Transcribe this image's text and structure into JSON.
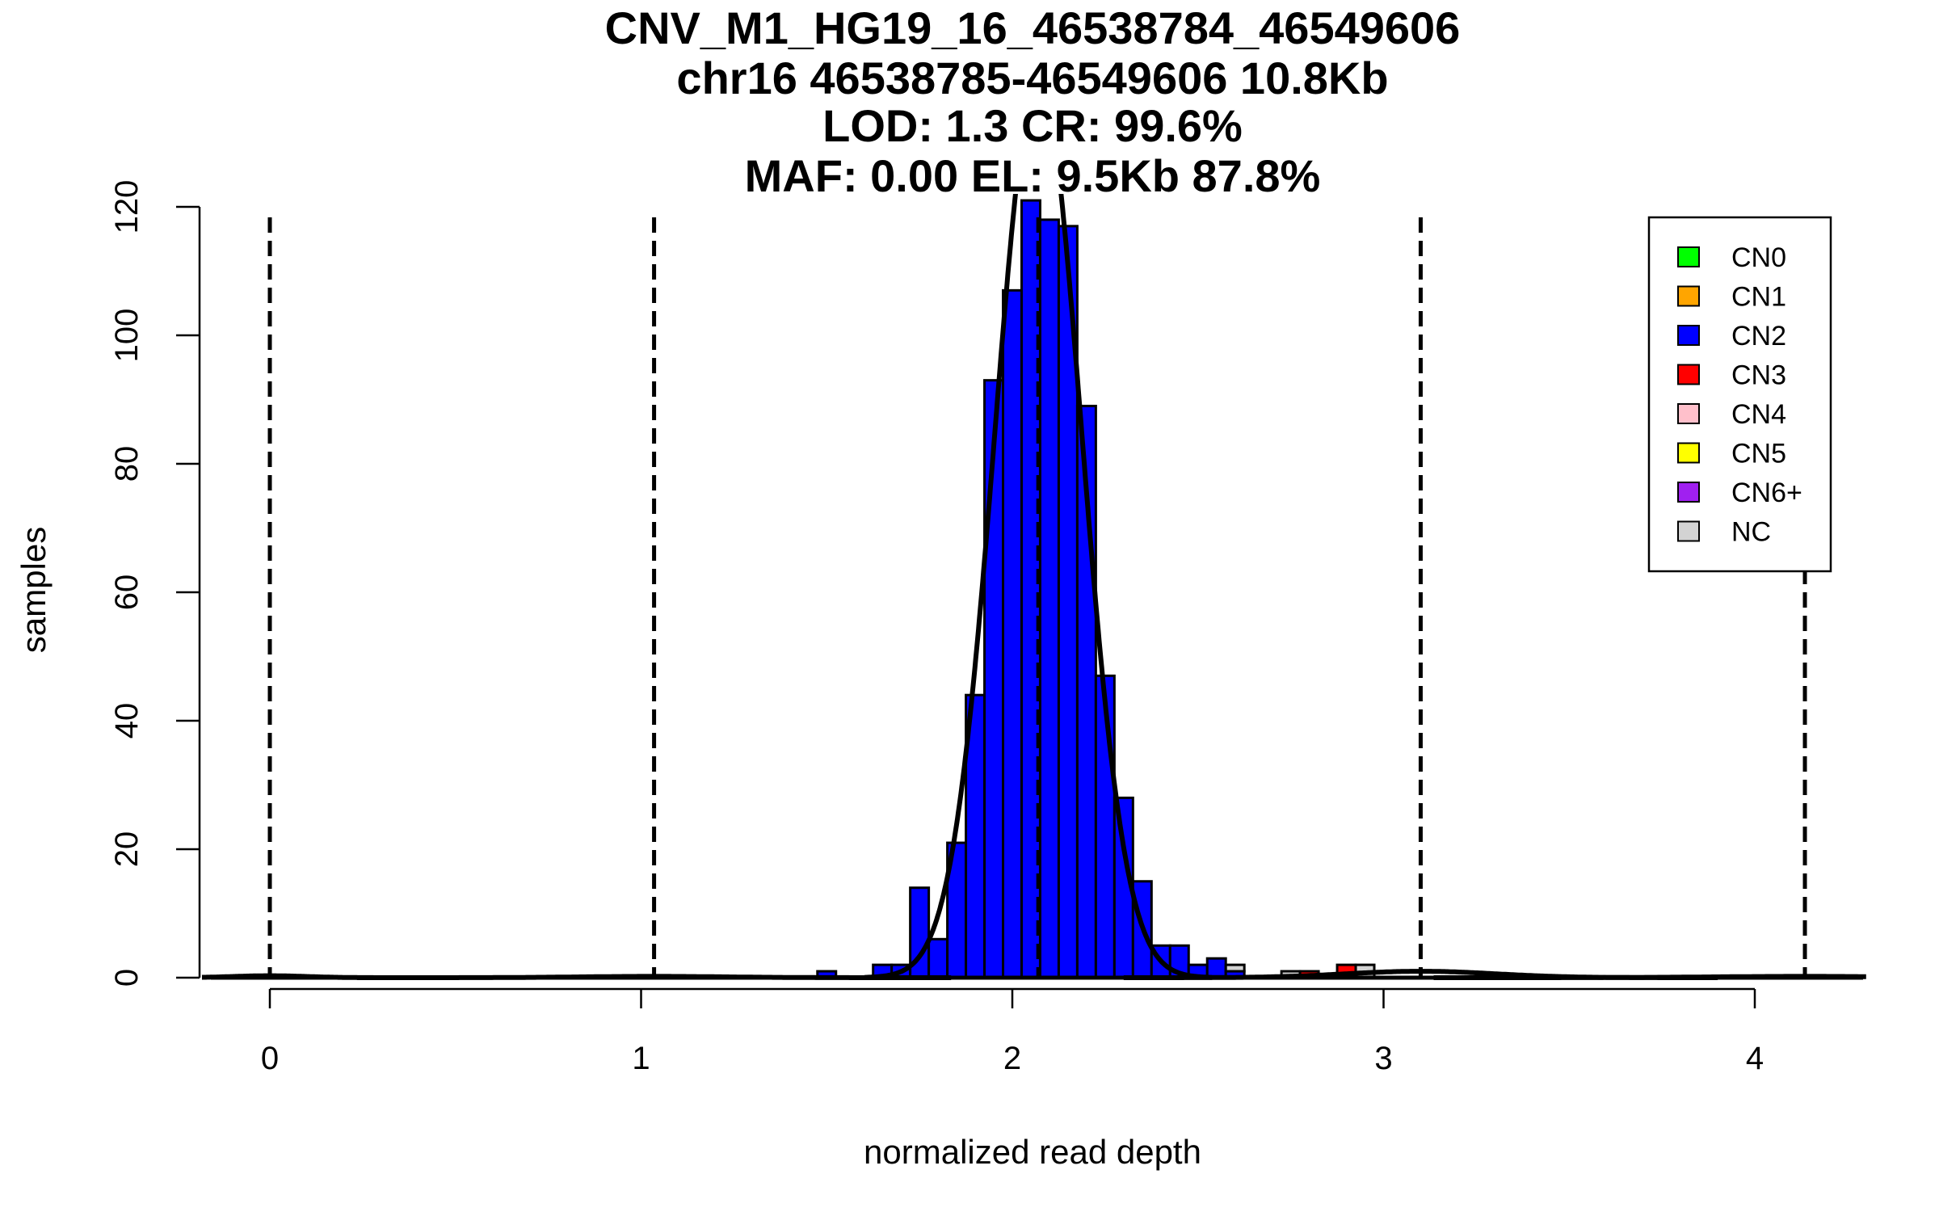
{
  "chart_data": {
    "type": "bar",
    "title_lines": [
      "CNV_M1_HG19_16_46538784_46549606",
      "chr16 46538785-46549606 10.8Kb",
      "LOD: 1.3 CR: 99.6%",
      "MAF: 0.00 EL: 9.5Kb 87.8%"
    ],
    "xlabel": "normalized read depth",
    "ylabel": "samples",
    "xlim": [
      -0.2,
      4.3
    ],
    "ylim": [
      0,
      120
    ],
    "xticks": [
      "0",
      "1",
      "2",
      "3",
      "4"
    ],
    "yticks": [
      "0",
      "20",
      "40",
      "60",
      "80",
      "100",
      "120"
    ],
    "bin_width": 0.05,
    "bins": [
      {
        "x0": 1.475,
        "counts": {
          "CN2": 1
        }
      },
      {
        "x0": 1.625,
        "counts": {
          "CN2": 2
        }
      },
      {
        "x0": 1.675,
        "counts": {
          "CN2": 2
        }
      },
      {
        "x0": 1.725,
        "counts": {
          "CN2": 14
        }
      },
      {
        "x0": 1.775,
        "counts": {
          "CN2": 6
        }
      },
      {
        "x0": 1.825,
        "counts": {
          "CN2": 21
        }
      },
      {
        "x0": 1.875,
        "counts": {
          "CN2": 44
        }
      },
      {
        "x0": 1.925,
        "counts": {
          "CN2": 93
        }
      },
      {
        "x0": 1.975,
        "counts": {
          "CN2": 107
        }
      },
      {
        "x0": 2.025,
        "counts": {
          "CN2": 121
        }
      },
      {
        "x0": 2.075,
        "counts": {
          "CN2": 118
        }
      },
      {
        "x0": 2.125,
        "counts": {
          "CN2": 117
        }
      },
      {
        "x0": 2.175,
        "counts": {
          "CN2": 89
        }
      },
      {
        "x0": 2.225,
        "counts": {
          "CN2": 47
        }
      },
      {
        "x0": 2.275,
        "counts": {
          "CN2": 28
        }
      },
      {
        "x0": 2.325,
        "counts": {
          "CN2": 15
        }
      },
      {
        "x0": 2.375,
        "counts": {
          "CN2": 5
        }
      },
      {
        "x0": 2.425,
        "counts": {
          "CN2": 5
        }
      },
      {
        "x0": 2.475,
        "counts": {
          "CN2": 2
        }
      },
      {
        "x0": 2.525,
        "counts": {
          "CN2": 3
        }
      },
      {
        "x0": 2.575,
        "counts": {
          "CN2": 1,
          "NC": 1
        }
      },
      {
        "x0": 2.725,
        "counts": {
          "NC": 1
        }
      },
      {
        "x0": 2.775,
        "counts": {
          "CN3": 1
        }
      },
      {
        "x0": 2.875,
        "counts": {
          "CN3": 2
        }
      },
      {
        "x0": 2.925,
        "counts": {
          "NC": 2
        }
      }
    ],
    "component_means": [
      0.0,
      1.035,
      2.07,
      3.1,
      4.135
    ],
    "fits": [
      {
        "mean": 0.0,
        "sd": 0.1,
        "peak": 0.3
      },
      {
        "mean": 1.035,
        "sd": 0.2,
        "peak": 0.2
      },
      {
        "mean": 2.07,
        "sd": 0.117,
        "peak": 140
      },
      {
        "mean": 3.1,
        "sd": 0.2,
        "peak": 1.0
      },
      {
        "mean": 4.135,
        "sd": 0.25,
        "peak": 0.2
      }
    ],
    "legend": {
      "placement": "top-right",
      "entries": [
        {
          "label": "CN0",
          "key": "CN0",
          "color": "#00FF00"
        },
        {
          "label": "CN1",
          "key": "CN1",
          "color": "#FFA500"
        },
        {
          "label": "CN2",
          "key": "CN2",
          "color": "#0000FF"
        },
        {
          "label": "CN3",
          "key": "CN3",
          "color": "#FF0000"
        },
        {
          "label": "CN4",
          "key": "CN4",
          "color": "#FFC0CB"
        },
        {
          "label": "CN5",
          "key": "CN5",
          "color": "#FFFF00"
        },
        {
          "label": "CN6+",
          "key": "CN6",
          "color": "#A020F0"
        },
        {
          "label": "NC",
          "key": "NC",
          "color": "#D3D3D3"
        }
      ]
    }
  }
}
